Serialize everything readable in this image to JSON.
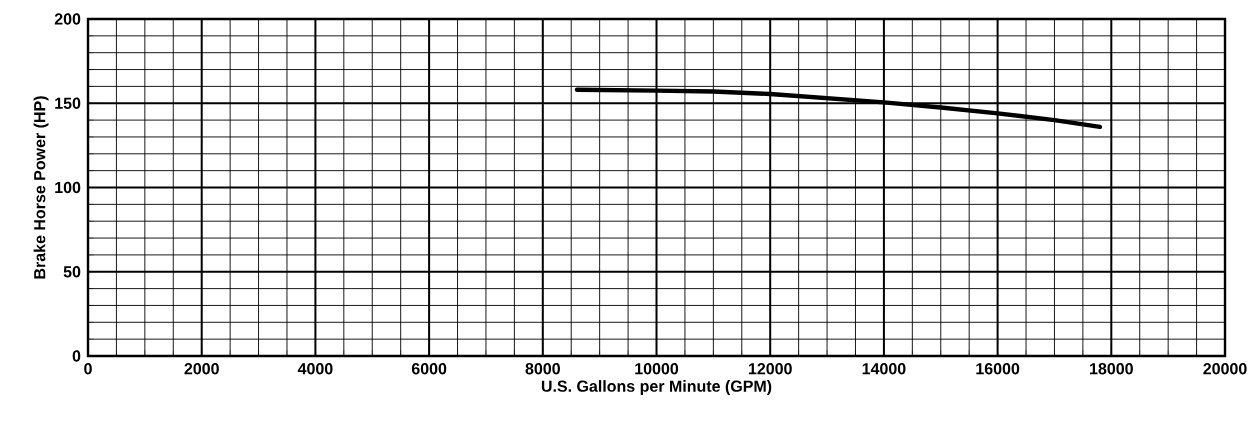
{
  "chart_data": {
    "type": "line",
    "xlabel": "U.S. Gallons per Minute (GPM)",
    "ylabel": "Brake Horse Power (HP)",
    "x": [
      8600,
      10000,
      11000,
      12000,
      13000,
      14000,
      15000,
      16000,
      17000,
      17800
    ],
    "series": [
      {
        "color": "#000000",
        "values": [
          158,
          157.5,
          157,
          155.5,
          153,
          150.5,
          147.5,
          144,
          140,
          136
        ]
      }
    ],
    "xlim": [
      0,
      20000
    ],
    "xticks": [
      0,
      2000,
      4000,
      6000,
      8000,
      10000,
      12000,
      14000,
      16000,
      18000,
      20000
    ],
    "ylim": [
      0,
      200
    ],
    "yticks": [
      0,
      50,
      100,
      150,
      200
    ],
    "grid": true,
    "marker": "none",
    "line_style": "solid"
  }
}
